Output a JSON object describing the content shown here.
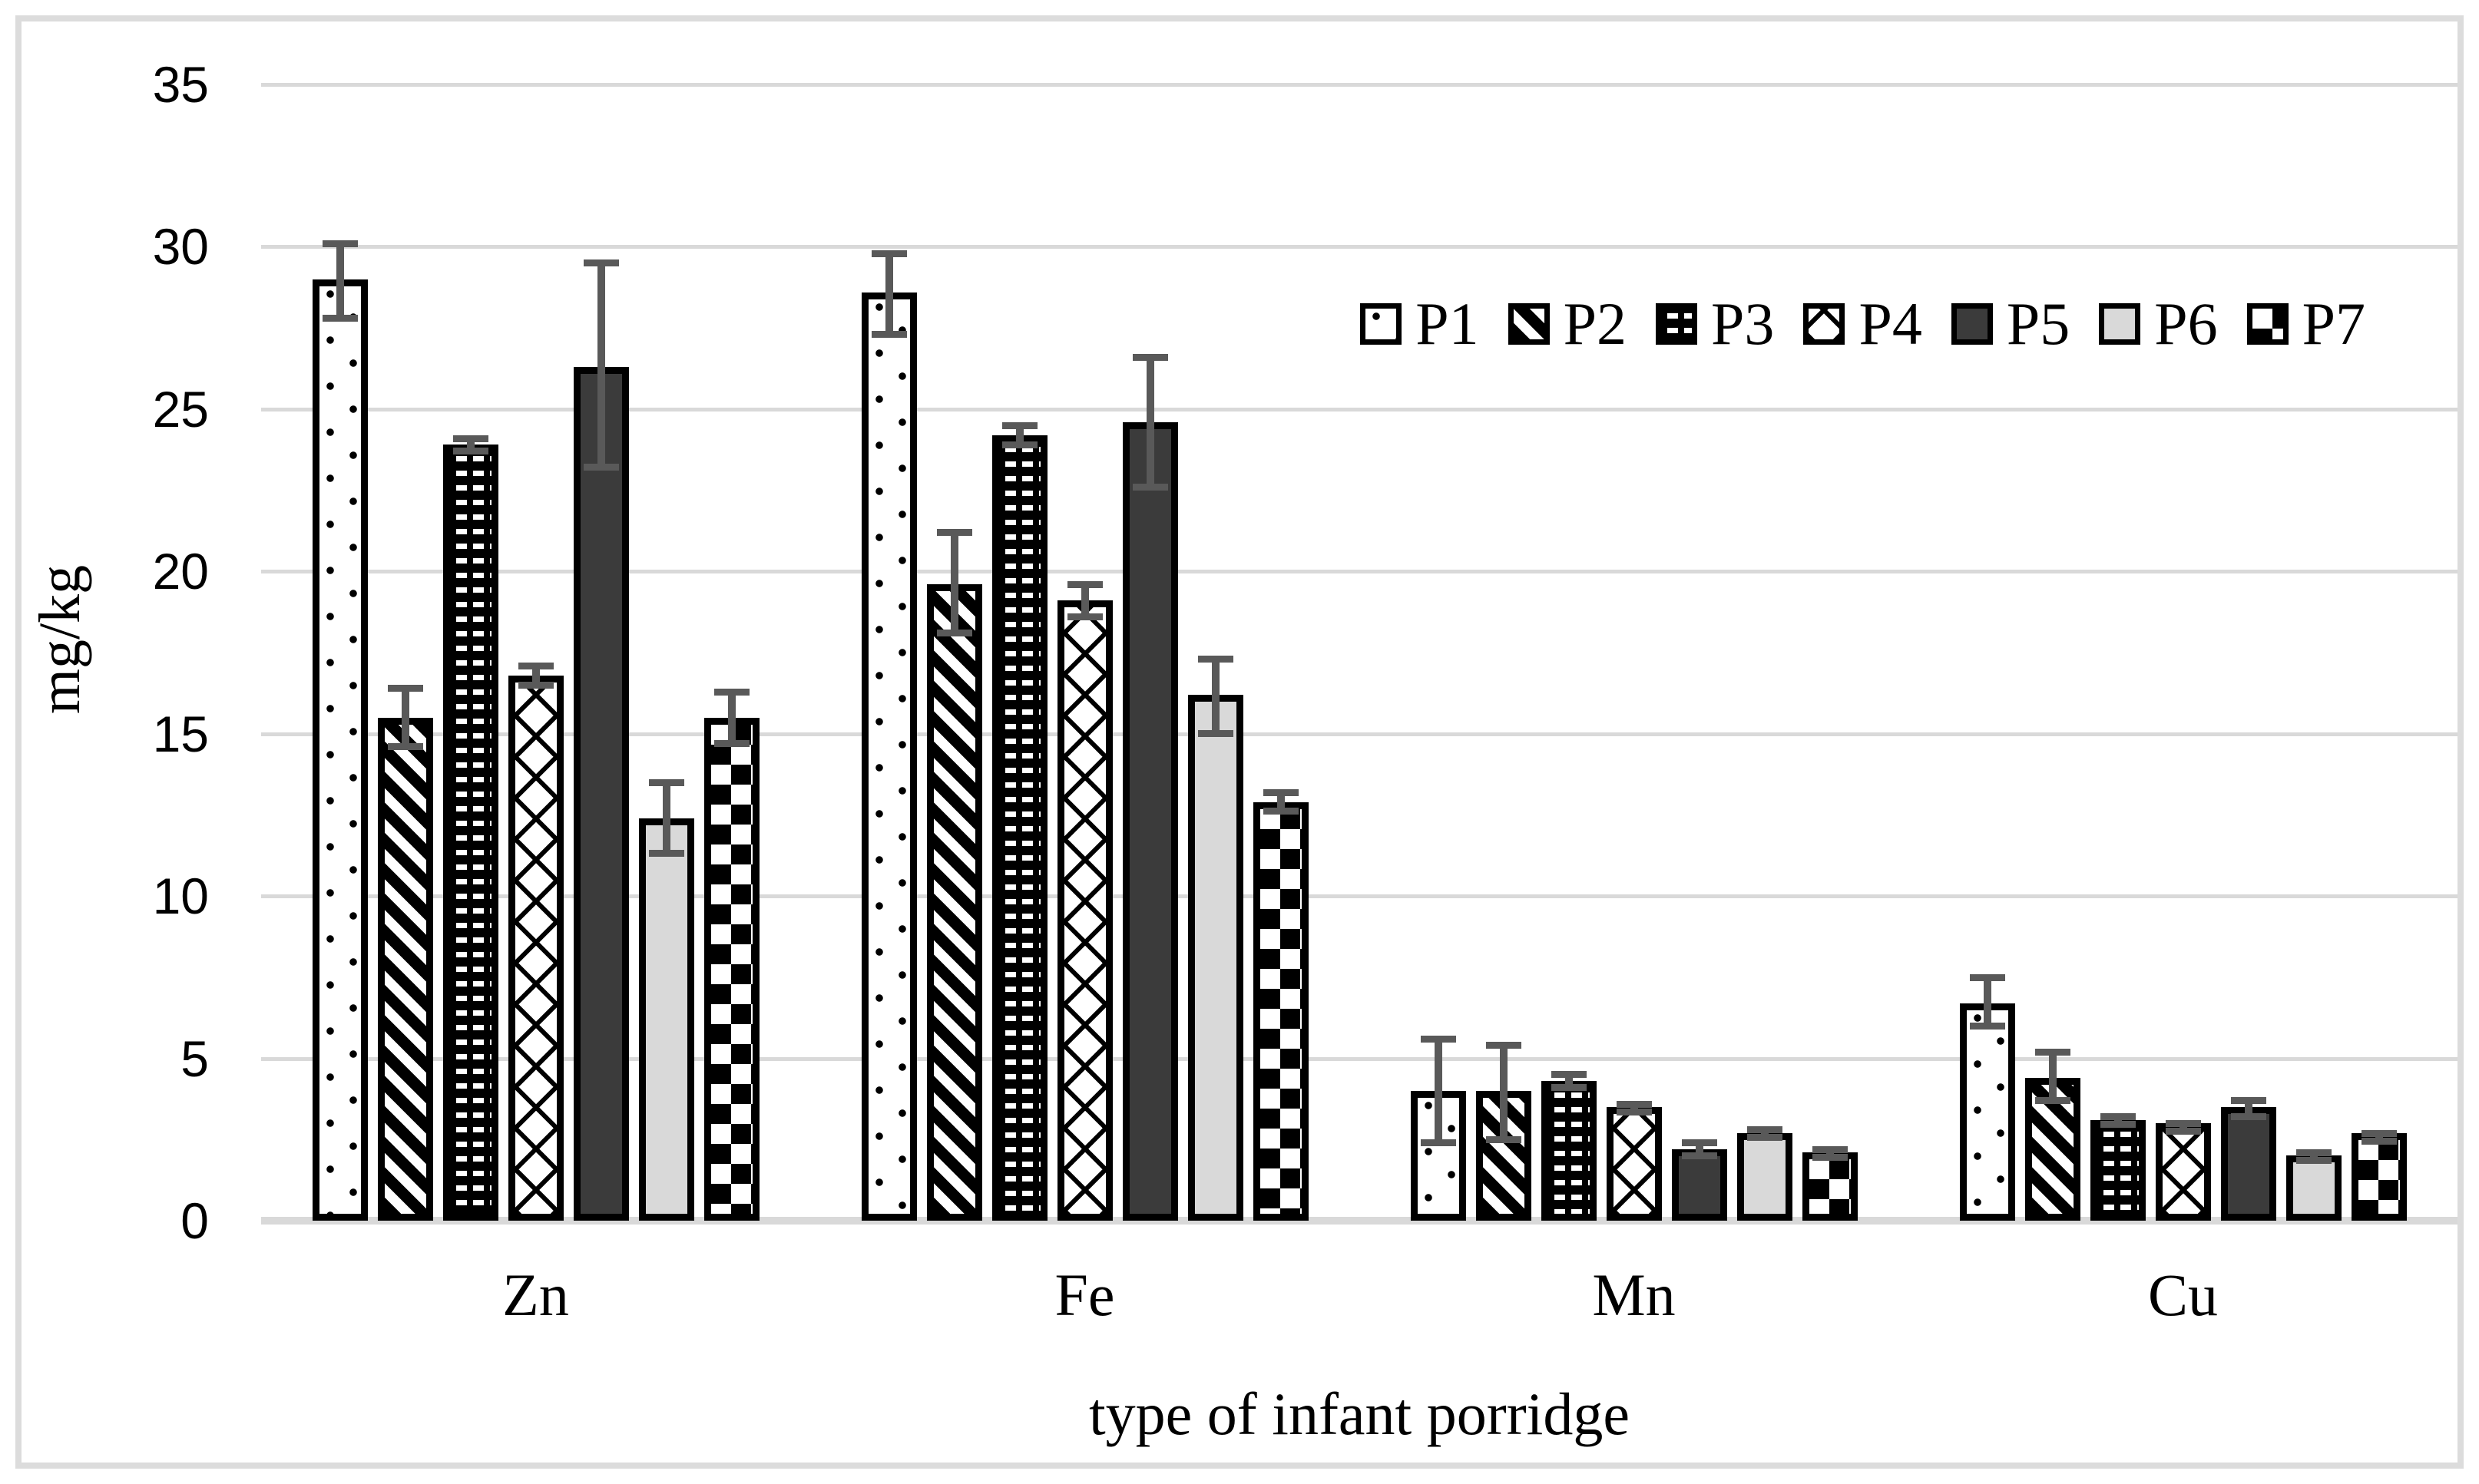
{
  "chart_data": {
    "type": "bar",
    "title": "",
    "xlabel": "type of infant porridge",
    "ylabel": "mg/kg",
    "categories": [
      "Zn",
      "Fe",
      "Mn",
      "Cu"
    ],
    "series": [
      {
        "name": "P1",
        "pattern": "dotted",
        "values": [
          29.0,
          28.6,
          4.0,
          6.7
        ],
        "err_low": [
          27.7,
          27.2,
          2.3,
          5.9
        ],
        "err_high": [
          30.2,
          29.9,
          5.7,
          7.6
        ]
      },
      {
        "name": "P2",
        "pattern": "diagonal-stripes",
        "values": [
          15.5,
          19.6,
          4.0,
          4.4
        ],
        "err_low": [
          14.5,
          18.0,
          2.4,
          3.6
        ],
        "err_high": [
          16.5,
          21.3,
          5.5,
          5.3
        ]
      },
      {
        "name": "P3",
        "pattern": "dashed-black",
        "values": [
          23.9,
          24.2,
          4.3,
          3.1
        ],
        "err_low": [
          23.6,
          23.8,
          4.0,
          3.0
        ],
        "err_high": [
          24.2,
          24.6,
          4.6,
          3.3
        ]
      },
      {
        "name": "P4",
        "pattern": "diamond-crosshatch",
        "values": [
          16.8,
          19.1,
          3.5,
          3.0
        ],
        "err_low": [
          16.4,
          18.5,
          3.3,
          2.8
        ],
        "err_high": [
          17.2,
          19.7,
          3.7,
          3.1
        ]
      },
      {
        "name": "P5",
        "pattern": "solid-dark-gray",
        "values": [
          26.3,
          24.6,
          2.2,
          3.5
        ],
        "err_low": [
          23.1,
          22.5,
          1.9,
          3.1
        ],
        "err_high": [
          29.6,
          26.7,
          2.5,
          3.8
        ]
      },
      {
        "name": "P6",
        "pattern": "solid-light-gray",
        "values": [
          12.4,
          16.2,
          2.7,
          2.0
        ],
        "err_low": [
          11.2,
          14.9,
          2.5,
          1.8
        ],
        "err_high": [
          13.6,
          17.4,
          2.9,
          2.2
        ]
      },
      {
        "name": "P7",
        "pattern": "checkerboard",
        "values": [
          15.5,
          12.9,
          2.1,
          2.7
        ],
        "err_low": [
          14.6,
          12.5,
          1.9,
          2.6
        ],
        "err_high": [
          16.4,
          13.3,
          2.3,
          2.8
        ]
      }
    ],
    "ylim": [
      0,
      35
    ],
    "yticks": [
      0,
      5,
      10,
      15,
      20,
      25,
      30,
      35
    ],
    "grid": true,
    "legend_position": "top-right",
    "legend_labels": [
      "P1",
      "P2",
      "P3",
      "P4",
      "P5",
      "P6",
      "P7"
    ],
    "colors": {
      "bar_outline": "#000000",
      "solid_dark": "#3b3b3b",
      "solid_light": "#d9d9d9",
      "error_bar": "#595959",
      "gridline": "#d9d9d9",
      "figure_border": "#dcdcdc",
      "text": "#000000",
      "background": "#ffffff"
    }
  }
}
